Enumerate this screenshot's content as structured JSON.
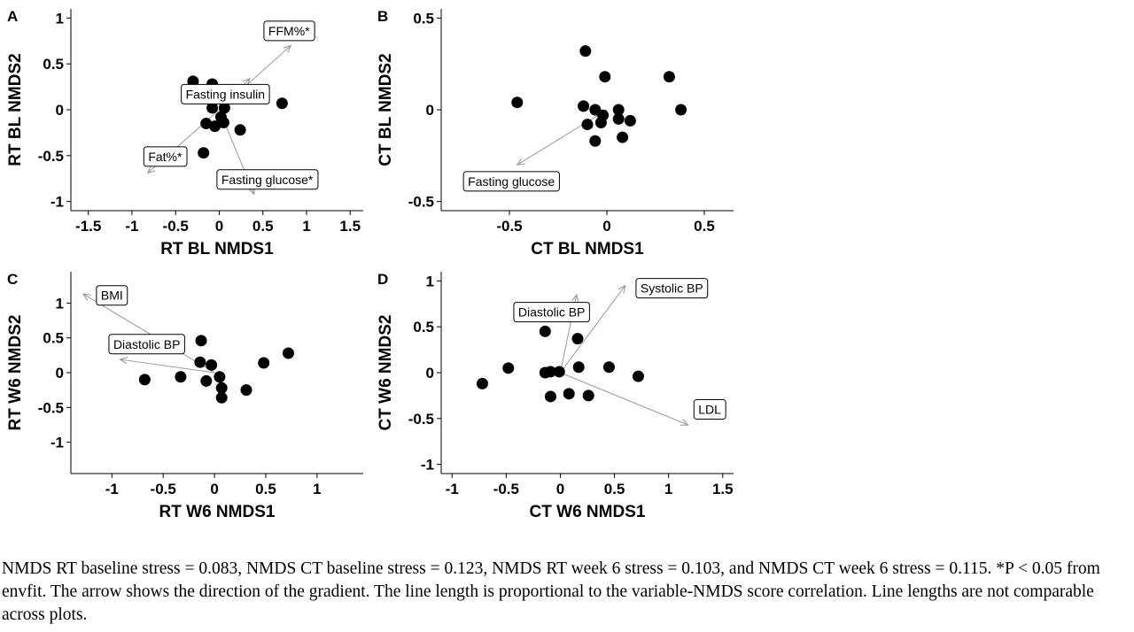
{
  "caption": "NMDS RT baseline stress = 0.083, NMDS CT baseline stress = 0.123, NMDS RT week 6 stress = 0.103, and NMDS CT week 6 stress = 0.115. *P < 0.05 from envfit. The arrow shows the direction of the gradient. The line length is proportional to the variable-NMDS score correlation. Line lengths are not comparable across plots.",
  "colors": {
    "point": "#000000",
    "arrow": "#999999",
    "axis": "#000000",
    "label_border": "#000000",
    "label_fill": "#ffffff"
  },
  "chart_data": [
    {
      "type": "scatter",
      "panel": "A",
      "xlabel": "RT BL NMDS1",
      "ylabel": "RT BL NMDS2",
      "xlim": [
        -1.7,
        1.65
      ],
      "ylim": [
        -1.1,
        1.1
      ],
      "xticks": [
        -1.5,
        -1,
        -0.5,
        0,
        0.5,
        1,
        1.5
      ],
      "xtick_labels": [
        "-1.5",
        "-1",
        "-0.5",
        "0",
        "0.5",
        "1",
        "1.5"
      ],
      "yticks": [
        -1,
        -0.5,
        0,
        0.5,
        1
      ],
      "ytick_labels": [
        "-1",
        "-0.5",
        "0",
        "0.5",
        "1"
      ],
      "points": [
        {
          "x": -0.3,
          "y": 0.31
        },
        {
          "x": -0.08,
          "y": 0.28
        },
        {
          "x": 0.72,
          "y": 0.07
        },
        {
          "x": -0.08,
          "y": 0.02
        },
        {
          "x": 0.06,
          "y": 0.02
        },
        {
          "x": 0.02,
          "y": -0.08
        },
        {
          "x": -0.15,
          "y": -0.15
        },
        {
          "x": -0.05,
          "y": -0.18
        },
        {
          "x": 0.05,
          "y": -0.14
        },
        {
          "x": 0.24,
          "y": -0.22
        },
        {
          "x": -0.18,
          "y": -0.47
        }
      ],
      "arrows": [
        {
          "label": "FFM%*",
          "x": 0.82,
          "y": 0.7,
          "label_x": 0.8,
          "label_y": 0.86
        },
        {
          "label": "Fasting insulin",
          "x": 0.35,
          "y": 0.34,
          "label_x": 0.07,
          "label_y": 0.17
        },
        {
          "label": "Fat%*",
          "x": -0.82,
          "y": -0.69,
          "label_x": -0.62,
          "label_y": -0.51
        },
        {
          "label": "Fasting glucose*",
          "x": 0.4,
          "y": -0.92,
          "label_x": 0.55,
          "label_y": -0.76
        }
      ]
    },
    {
      "type": "scatter",
      "panel": "B",
      "xlabel": "CT BL NMDS1",
      "ylabel": "CT BL NMDS2",
      "xlim": [
        -0.85,
        0.65
      ],
      "ylim": [
        -0.55,
        0.55
      ],
      "xticks": [
        -0.5,
        0,
        0.5
      ],
      "xtick_labels": [
        "-0.5",
        "0",
        "0.5"
      ],
      "yticks": [
        -0.5,
        0,
        0.5
      ],
      "ytick_labels": [
        "-0.5",
        "0",
        "0.5"
      ],
      "points": [
        {
          "x": -0.46,
          "y": 0.04
        },
        {
          "x": -0.11,
          "y": 0.32
        },
        {
          "x": -0.01,
          "y": 0.18
        },
        {
          "x": 0.32,
          "y": 0.18
        },
        {
          "x": 0.38,
          "y": 0.0
        },
        {
          "x": -0.12,
          "y": 0.02
        },
        {
          "x": -0.06,
          "y": 0.0
        },
        {
          "x": 0.06,
          "y": 0.0
        },
        {
          "x": -0.02,
          "y": -0.03
        },
        {
          "x": 0.06,
          "y": -0.05
        },
        {
          "x": 0.12,
          "y": -0.06
        },
        {
          "x": -0.1,
          "y": -0.08
        },
        {
          "x": -0.03,
          "y": -0.07
        },
        {
          "x": -0.06,
          "y": -0.17
        },
        {
          "x": 0.08,
          "y": -0.15
        }
      ],
      "arrows": [
        {
          "label": "Fasting glucose",
          "x": -0.46,
          "y": -0.3,
          "label_x": -0.49,
          "label_y": -0.39
        }
      ]
    },
    {
      "type": "scatter",
      "panel": "C",
      "xlabel": "RT W6 NMDS1",
      "ylabel": "RT W6 NMDS2",
      "xlim": [
        -1.4,
        1.45
      ],
      "ylim": [
        -1.45,
        1.45
      ],
      "xticks": [
        -1,
        -0.5,
        0,
        0.5,
        1
      ],
      "xtick_labels": [
        "-1",
        "-0.5",
        "0",
        "0.5",
        "1"
      ],
      "yticks": [
        -1,
        -0.5,
        0,
        0.5,
        1
      ],
      "ytick_labels": [
        "-1",
        "-0.5",
        "0",
        "0.5",
        "1"
      ],
      "points": [
        {
          "x": -0.68,
          "y": -0.1
        },
        {
          "x": -0.33,
          "y": -0.06
        },
        {
          "x": -0.13,
          "y": 0.46
        },
        {
          "x": -0.14,
          "y": 0.15
        },
        {
          "x": -0.03,
          "y": 0.11
        },
        {
          "x": 0.72,
          "y": 0.28
        },
        {
          "x": 0.48,
          "y": 0.14
        },
        {
          "x": 0.05,
          "y": -0.06
        },
        {
          "x": -0.08,
          "y": -0.12
        },
        {
          "x": 0.07,
          "y": -0.22
        },
        {
          "x": 0.07,
          "y": -0.36
        },
        {
          "x": 0.31,
          "y": -0.25
        }
      ],
      "arrows": [
        {
          "label": "BMI",
          "x": -1.28,
          "y": 1.13,
          "label_x": -1.0,
          "label_y": 1.11
        },
        {
          "label": "Diastolic BP",
          "x": -0.92,
          "y": 0.19,
          "label_x": -0.66,
          "label_y": 0.41
        }
      ]
    },
    {
      "type": "scatter",
      "panel": "D",
      "xlabel": "CT W6 NMDS1",
      "ylabel": "CT W6 NMDS2",
      "xlim": [
        -1.1,
        1.6
      ],
      "ylim": [
        -1.1,
        1.1
      ],
      "xticks": [
        -1,
        -0.5,
        0,
        0.5,
        1,
        1.5
      ],
      "xtick_labels": [
        "-1",
        "-0.5",
        "0",
        "0.5",
        "1",
        "1.5"
      ],
      "yticks": [
        -1,
        -0.5,
        0,
        0.5,
        1
      ],
      "ytick_labels": [
        "-1",
        "-0.5",
        "0",
        "0.5",
        "1"
      ],
      "points": [
        {
          "x": -0.72,
          "y": -0.12
        },
        {
          "x": -0.48,
          "y": 0.05
        },
        {
          "x": -0.14,
          "y": 0.45
        },
        {
          "x": 0.16,
          "y": 0.37
        },
        {
          "x": -0.14,
          "y": 0.0
        },
        {
          "x": -0.09,
          "y": 0.01
        },
        {
          "x": -0.01,
          "y": 0.01
        },
        {
          "x": 0.17,
          "y": 0.06
        },
        {
          "x": 0.45,
          "y": 0.06
        },
        {
          "x": 0.72,
          "y": -0.04
        },
        {
          "x": -0.09,
          "y": -0.26
        },
        {
          "x": 0.08,
          "y": -0.23
        },
        {
          "x": 0.26,
          "y": -0.25
        }
      ],
      "arrows": [
        {
          "label": "Systolic BP",
          "x": 0.6,
          "y": 0.95,
          "label_x": 1.03,
          "label_y": 0.92
        },
        {
          "label": "Diastolic BP",
          "x": 0.15,
          "y": 0.85,
          "label_x": -0.08,
          "label_y": 0.66
        },
        {
          "label": "LDL",
          "x": 1.18,
          "y": -0.57,
          "label_x": 1.38,
          "label_y": -0.4
        }
      ]
    }
  ]
}
